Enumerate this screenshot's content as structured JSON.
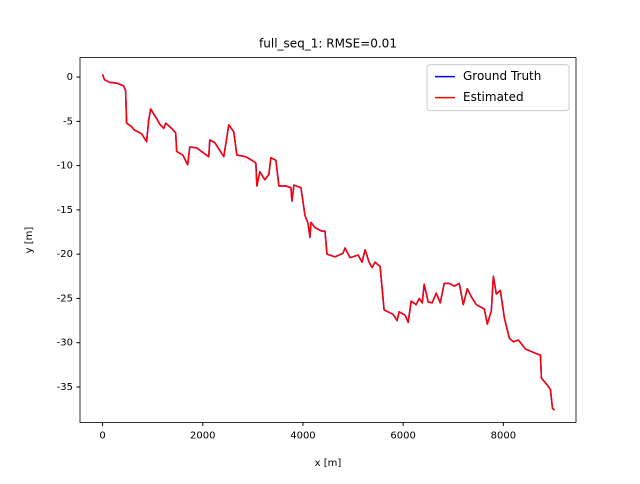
{
  "chart_data": {
    "type": "line",
    "title": "full_seq_1: RMSE=0.01",
    "x_label": "x [m]",
    "y_label": "y [m]",
    "x": [
      0,
      40,
      140,
      300,
      420,
      460,
      480,
      580,
      640,
      780,
      880,
      920,
      960,
      1060,
      1140,
      1220,
      1260,
      1380,
      1460,
      1480,
      1600,
      1700,
      1740,
      1880,
      2000,
      2120,
      2140,
      2240,
      2320,
      2420,
      2520,
      2620,
      2680,
      2860,
      2980,
      3060,
      3080,
      3140,
      3240,
      3320,
      3360,
      3460,
      3520,
      3660,
      3760,
      3780,
      3820,
      3960,
      4040,
      4100,
      4140,
      4160,
      4240,
      4380,
      4440,
      4480,
      4640,
      4800,
      4840,
      4940,
      5100,
      5180,
      5240,
      5320,
      5380,
      5440,
      5540,
      5620,
      5800,
      5880,
      5920,
      6040,
      6100,
      6160,
      6260,
      6320,
      6380,
      6420,
      6500,
      6580,
      6660,
      6740,
      6820,
      6920,
      7020,
      7120,
      7200,
      7280,
      7360,
      7460,
      7620,
      7680,
      7760,
      7800,
      7860,
      7940,
      8020,
      8120,
      8200,
      8300,
      8440,
      8640,
      8740,
      8760,
      8880,
      8940,
      8980,
      9020
    ],
    "series": [
      {
        "name": "Ground Truth",
        "color": "#0000ff",
        "values": [
          0.3,
          -0.3,
          -0.6,
          -0.7,
          -1.0,
          -1.5,
          -5.2,
          -5.6,
          -6.0,
          -6.4,
          -7.3,
          -4.9,
          -3.6,
          -4.5,
          -5.3,
          -5.8,
          -5.2,
          -5.8,
          -6.3,
          -8.4,
          -8.8,
          -9.9,
          -7.9,
          -8.0,
          -8.5,
          -9.0,
          -7.1,
          -7.4,
          -8.1,
          -9.0,
          -5.4,
          -6.2,
          -8.8,
          -9.0,
          -9.4,
          -9.7,
          -12.3,
          -10.7,
          -11.6,
          -11.0,
          -9.1,
          -9.4,
          -12.3,
          -12.3,
          -12.5,
          -14.0,
          -12.2,
          -12.5,
          -15.6,
          -16.5,
          -18.1,
          -16.4,
          -17.0,
          -17.4,
          -17.4,
          -20.0,
          -20.3,
          -19.9,
          -19.3,
          -20.4,
          -20.1,
          -20.9,
          -19.5,
          -20.9,
          -21.5,
          -20.9,
          -21.4,
          -26.3,
          -26.8,
          -27.5,
          -26.5,
          -26.9,
          -27.7,
          -25.3,
          -25.7,
          -25.0,
          -25.5,
          -23.4,
          -25.4,
          -25.5,
          -24.4,
          -25.5,
          -23.3,
          -23.3,
          -23.6,
          -23.3,
          -25.7,
          -23.9,
          -24.8,
          -25.7,
          -26.2,
          -27.9,
          -26.4,
          -22.5,
          -24.5,
          -24.1,
          -27.2,
          -29.5,
          -29.9,
          -29.7,
          -30.7,
          -31.2,
          -31.4,
          -34.0,
          -34.8,
          -35.3,
          -37.4,
          -37.6
        ]
      },
      {
        "name": "Estimated",
        "color": "#ff0000",
        "values": [
          0.3,
          -0.3,
          -0.6,
          -0.7,
          -1.0,
          -1.5,
          -5.2,
          -5.6,
          -6.0,
          -6.4,
          -7.3,
          -4.9,
          -3.6,
          -4.5,
          -5.3,
          -5.8,
          -5.2,
          -5.8,
          -6.3,
          -8.4,
          -8.8,
          -9.9,
          -7.9,
          -8.0,
          -8.5,
          -9.0,
          -7.1,
          -7.4,
          -8.1,
          -9.0,
          -5.4,
          -6.2,
          -8.8,
          -9.0,
          -9.4,
          -9.7,
          -12.3,
          -10.7,
          -11.6,
          -11.0,
          -9.1,
          -9.4,
          -12.3,
          -12.3,
          -12.5,
          -14.0,
          -12.2,
          -12.5,
          -15.6,
          -16.5,
          -18.1,
          -16.4,
          -17.0,
          -17.4,
          -17.4,
          -20.0,
          -20.3,
          -19.9,
          -19.3,
          -20.4,
          -20.1,
          -20.9,
          -19.5,
          -20.9,
          -21.5,
          -20.9,
          -21.4,
          -26.3,
          -26.8,
          -27.5,
          -26.5,
          -26.9,
          -27.7,
          -25.3,
          -25.7,
          -25.0,
          -25.5,
          -23.4,
          -25.4,
          -25.5,
          -24.4,
          -25.5,
          -23.3,
          -23.3,
          -23.6,
          -23.3,
          -25.7,
          -23.9,
          -24.8,
          -25.7,
          -26.2,
          -27.9,
          -26.4,
          -22.5,
          -24.5,
          -24.1,
          -27.2,
          -29.5,
          -29.9,
          -29.7,
          -30.7,
          -31.2,
          -31.4,
          -34.0,
          -34.8,
          -35.3,
          -37.4,
          -37.6
        ]
      }
    ],
    "xlim": [
      -450,
      9450
    ],
    "xticks": [
      0,
      2000,
      4000,
      6000,
      8000
    ],
    "ylim": [
      -39,
      2.2
    ],
    "yticks": [
      0,
      -5,
      -10,
      -15,
      -20,
      -25,
      -30,
      -35
    ],
    "grid": false,
    "legend": "upper right"
  }
}
